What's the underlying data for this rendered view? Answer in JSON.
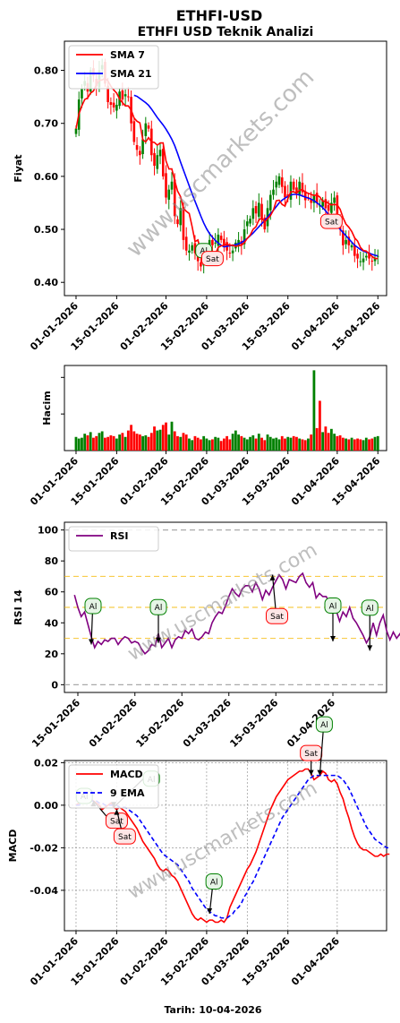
{
  "header": {
    "title": "ETHFI-USD",
    "subtitle": "ETHFI USD Teknik Analizi"
  },
  "watermark": "www.uscmarkets.com",
  "footer": {
    "date_label": "Tarih: 10-04-2026"
  },
  "colors": {
    "up": "#008000",
    "down": "#ff0000",
    "sma7": "#ff0000",
    "sma21": "#0000ff",
    "rsi": "#800080",
    "macd": "#ff0000",
    "signal": "#0000ff",
    "buy_border": "#008000",
    "sell_border": "#ff0000",
    "buy_fill": "#e6f5e6",
    "sell_fill": "#fde6e6"
  },
  "chart_data": [
    {
      "type": "candlestick",
      "ylabel": "Fiyat",
      "ylim": [
        0.375,
        0.855
      ],
      "yticks": [
        0.4,
        0.5,
        0.6,
        0.7,
        0.8
      ],
      "ytick_labels": [
        "0.40",
        "0.50",
        "0.60",
        "0.70",
        "0.80"
      ],
      "xlim": [
        -4,
        107
      ],
      "xticks": [
        0,
        14,
        31,
        45,
        59,
        73,
        90,
        104
      ],
      "xtick_labels": [
        "01-01-2026",
        "15-01-2026",
        "01-02-2026",
        "15-02-2026",
        "01-03-2026",
        "15-03-2026",
        "01-04-2026",
        "15-04-2026"
      ],
      "legend": [
        "SMA 7",
        "SMA 21"
      ],
      "legend_position": "upper left",
      "close": [
        0.69,
        0.745,
        0.765,
        0.78,
        0.76,
        0.8,
        0.79,
        0.77,
        0.8,
        0.81,
        0.775,
        0.74,
        0.735,
        0.73,
        0.735,
        0.76,
        0.745,
        0.755,
        0.75,
        0.7,
        0.665,
        0.65,
        0.64,
        0.67,
        0.7,
        0.69,
        0.64,
        0.62,
        0.64,
        0.65,
        0.6,
        0.56,
        0.575,
        0.59,
        0.525,
        0.51,
        0.54,
        0.48,
        0.46,
        0.46,
        0.47,
        0.455,
        0.44,
        0.43,
        0.45,
        0.46,
        0.48,
        0.47,
        0.475,
        0.49,
        0.48,
        0.47,
        0.46,
        0.455,
        0.46,
        0.475,
        0.48,
        0.47,
        0.5,
        0.515,
        0.52,
        0.54,
        0.53,
        0.55,
        0.52,
        0.5,
        0.54,
        0.565,
        0.575,
        0.59,
        0.6,
        0.58,
        0.56,
        0.56,
        0.59,
        0.575,
        0.57,
        0.59,
        0.57,
        0.555,
        0.56,
        0.55,
        0.565,
        0.55,
        0.545,
        0.555,
        0.54,
        0.535,
        0.55,
        0.56,
        0.52,
        0.5,
        0.47,
        0.48,
        0.47,
        0.47,
        0.45,
        0.445,
        0.44,
        0.445,
        0.45,
        0.445,
        0.44,
        0.445,
        0.45
      ],
      "sma7": [
        0.69,
        0.718,
        0.733,
        0.745,
        0.748,
        0.757,
        0.761,
        0.773,
        0.781,
        0.782,
        0.785,
        0.78,
        0.77,
        0.763,
        0.757,
        0.746,
        0.739,
        0.733,
        0.733,
        0.725,
        0.71,
        0.704,
        0.701,
        0.669,
        0.665,
        0.673,
        0.665,
        0.664,
        0.659,
        0.663,
        0.663,
        0.629,
        0.614,
        0.614,
        0.592,
        0.572,
        0.562,
        0.54,
        0.534,
        0.53,
        0.505,
        0.477,
        0.48,
        0.457,
        0.453,
        0.454,
        0.45,
        0.447,
        0.453,
        0.466,
        0.469,
        0.47,
        0.472,
        0.47,
        0.47,
        0.468,
        0.469,
        0.47,
        0.475,
        0.483,
        0.489,
        0.5,
        0.505,
        0.518,
        0.521,
        0.514,
        0.52,
        0.526,
        0.536,
        0.554,
        0.555,
        0.547,
        0.544,
        0.558,
        0.571,
        0.571,
        0.568,
        0.574,
        0.575,
        0.57,
        0.568,
        0.566,
        0.564,
        0.565,
        0.561,
        0.553,
        0.553,
        0.549,
        0.546,
        0.547,
        0.546,
        0.538,
        0.522,
        0.51,
        0.504,
        0.496,
        0.484,
        0.478,
        0.466,
        0.46,
        0.459,
        0.454,
        0.449,
        0.445,
        0.445
      ],
      "sma21": [
        null,
        null,
        null,
        null,
        null,
        null,
        null,
        null,
        null,
        null,
        null,
        null,
        null,
        null,
        null,
        null,
        null,
        null,
        null,
        null,
        0.753,
        0.751,
        0.747,
        0.743,
        0.739,
        0.734,
        0.727,
        0.719,
        0.711,
        0.704,
        0.697,
        0.689,
        0.68,
        0.67,
        0.658,
        0.643,
        0.627,
        0.612,
        0.597,
        0.582,
        0.567,
        0.553,
        0.539,
        0.525,
        0.512,
        0.501,
        0.492,
        0.485,
        0.479,
        0.474,
        0.47,
        0.467,
        0.468,
        0.469,
        0.47,
        0.471,
        0.473,
        0.475,
        0.479,
        0.483,
        0.488,
        0.493,
        0.499,
        0.505,
        0.511,
        0.517,
        0.523,
        0.53,
        0.536,
        0.543,
        0.55,
        0.555,
        0.559,
        0.562,
        0.565,
        0.566,
        0.566,
        0.565,
        0.563,
        0.561,
        0.559,
        0.557,
        0.554,
        0.55,
        0.546,
        0.541,
        0.535,
        0.528,
        0.521,
        0.514,
        0.507,
        0.5,
        0.494,
        0.488,
        0.482,
        0.476,
        0.47,
        0.466,
        0.462,
        0.459,
        0.457,
        0.455,
        0.453,
        0.451,
        0.45
      ],
      "signals": [
        {
          "label": "Al",
          "index": 44,
          "value": 0.46
        },
        {
          "label": "Sat",
          "index": 47,
          "value": 0.445
        },
        {
          "label": "Sat",
          "index": 88,
          "value": 0.515
        }
      ]
    },
    {
      "type": "bar",
      "ylabel": "Hacim",
      "xlim": [
        -4,
        107
      ],
      "xticks": [
        0,
        14,
        31,
        45,
        59,
        73,
        90,
        104
      ],
      "xtick_labels": [
        "01-01-2026",
        "15-01-2026",
        "01-02-2026",
        "15-02-2026",
        "01-03-2026",
        "15-03-2026",
        "01-04-2026",
        "15-04-2026"
      ],
      "values": [
        0.17,
        0.15,
        0.16,
        0.21,
        0.19,
        0.23,
        0.16,
        0.18,
        0.22,
        0.24,
        0.16,
        0.17,
        0.19,
        0.18,
        0.15,
        0.2,
        0.22,
        0.17,
        0.25,
        0.32,
        0.24,
        0.21,
        0.2,
        0.18,
        0.19,
        0.17,
        0.22,
        0.3,
        0.25,
        0.26,
        0.32,
        0.35,
        0.2,
        0.36,
        0.24,
        0.18,
        0.17,
        0.22,
        0.2,
        0.15,
        0.13,
        0.18,
        0.16,
        0.14,
        0.18,
        0.15,
        0.13,
        0.14,
        0.17,
        0.16,
        0.12,
        0.15,
        0.18,
        0.14,
        0.21,
        0.25,
        0.2,
        0.18,
        0.16,
        0.14,
        0.17,
        0.19,
        0.15,
        0.21,
        0.16,
        0.13,
        0.2,
        0.17,
        0.15,
        0.16,
        0.14,
        0.18,
        0.15,
        0.17,
        0.16,
        0.18,
        0.17,
        0.15,
        0.14,
        0.13,
        0.15,
        0.2,
        1.0,
        0.28,
        0.62,
        0.23,
        0.3,
        0.22,
        0.27,
        0.21,
        0.18,
        0.19,
        0.16,
        0.15,
        0.14,
        0.16,
        0.14,
        0.15,
        0.14,
        0.13,
        0.16,
        0.14,
        0.15,
        0.17,
        0.18
      ]
    },
    {
      "type": "line",
      "ylabel": "RSI 14",
      "ylim": [
        -5,
        105
      ],
      "yticks": [
        0,
        20,
        40,
        60,
        80,
        100
      ],
      "ytick_labels": [
        "0",
        "20",
        "40",
        "60",
        "80",
        "100"
      ],
      "xlim": [
        10,
        106
      ],
      "xticks": [
        14,
        31,
        45,
        59,
        73,
        90
      ],
      "xtick_labels": [
        "15-01-2026",
        "01-02-2026",
        "15-02-2026",
        "01-03-2026",
        "15-03-2026",
        "01-04-2026"
      ],
      "hlines": [
        0,
        30,
        50,
        70,
        100
      ],
      "legend": [
        "RSI"
      ],
      "legend_position": "upper left",
      "x_start": 13,
      "values": [
        58,
        50,
        44,
        47,
        39,
        31,
        24,
        28,
        26,
        29,
        28,
        30,
        30,
        26,
        29,
        31,
        30,
        27,
        28,
        27,
        23,
        20,
        22,
        26,
        25,
        33,
        24,
        27,
        30,
        24,
        29,
        31,
        30,
        35,
        33,
        36,
        30,
        29,
        31,
        34,
        33,
        40,
        44,
        47,
        46,
        51,
        57,
        62,
        59,
        57,
        62,
        64,
        64,
        60,
        66,
        62,
        55,
        61,
        58,
        63,
        67,
        71,
        68,
        62,
        68,
        67,
        66,
        70,
        72,
        66,
        63,
        66,
        56,
        59,
        57,
        57,
        53,
        47,
        48,
        41,
        47,
        44,
        50,
        43,
        40,
        36,
        32,
        27,
        31,
        40,
        32,
        40,
        45,
        35,
        29,
        34,
        30,
        33,
        25,
        24,
        31,
        41
      ],
      "signals": [
        {
          "label": "Al",
          "index": 18,
          "value": 26
        },
        {
          "label": "Al",
          "index": 38,
          "value": 27
        },
        {
          "label": "Sat",
          "index": 72,
          "value": 71
        },
        {
          "label": "Al",
          "index": 90,
          "value": 28
        },
        {
          "label": "Al",
          "index": 101,
          "value": 22
        }
      ]
    },
    {
      "type": "line",
      "ylabel": "MACD",
      "ylim": [
        -0.059,
        0.021
      ],
      "yticks": [
        -0.04,
        -0.02,
        0.0,
        0.02
      ],
      "ytick_labels": [
        "-0.04",
        "-0.02",
        "0.00",
        "0.02"
      ],
      "xlim": [
        -4,
        107
      ],
      "xticks": [
        0,
        14,
        31,
        45,
        59,
        73,
        90
      ],
      "xtick_labels": [
        "01-01-2026",
        "15-01-2026",
        "01-02-2026",
        "15-02-2026",
        "01-03-2026",
        "15-03-2026",
        "01-04-2026"
      ],
      "legend": [
        "MACD",
        "9 EMA"
      ],
      "legend_position": "upper left",
      "macd": [
        0.0,
        0.001,
        0.002,
        0.003,
        0.002,
        0.003,
        0.002,
        0.001,
        0.0,
        -0.002,
        -0.001,
        0.0,
        0.001,
        -0.001,
        -0.002,
        -0.001,
        -0.002,
        -0.003,
        -0.005,
        -0.007,
        -0.009,
        -0.011,
        -0.014,
        -0.017,
        -0.019,
        -0.021,
        -0.023,
        -0.025,
        -0.028,
        -0.03,
        -0.031,
        -0.03,
        -0.031,
        -0.033,
        -0.034,
        -0.036,
        -0.039,
        -0.042,
        -0.045,
        -0.048,
        -0.051,
        -0.053,
        -0.054,
        -0.053,
        -0.054,
        -0.055,
        -0.054,
        -0.054,
        -0.055,
        -0.055,
        -0.054,
        -0.055,
        -0.053,
        -0.048,
        -0.045,
        -0.042,
        -0.039,
        -0.036,
        -0.033,
        -0.03,
        -0.028,
        -0.025,
        -0.022,
        -0.018,
        -0.014,
        -0.01,
        -0.006,
        -0.002,
        0.001,
        0.004,
        0.006,
        0.008,
        0.01,
        0.012,
        0.013,
        0.014,
        0.015,
        0.016,
        0.016,
        0.017,
        0.017,
        0.015,
        0.012,
        0.013,
        0.014,
        0.016,
        0.015,
        0.012,
        0.011,
        0.012,
        0.01,
        0.006,
        0.003,
        -0.002,
        -0.006,
        -0.011,
        -0.015,
        -0.018,
        -0.02,
        -0.021,
        -0.021,
        -0.022,
        -0.023,
        -0.024,
        -0.024,
        -0.023,
        -0.024,
        -0.023,
        -0.023
      ],
      "signal": [
        0.0,
        0.0,
        0.001,
        0.001,
        0.001,
        0.002,
        0.002,
        0.002,
        0.001,
        0.001,
        0.0,
        0.0,
        0.0,
        0.0,
        0.0,
        -0.001,
        -0.001,
        -0.001,
        -0.002,
        -0.003,
        -0.004,
        -0.005,
        -0.007,
        -0.009,
        -0.011,
        -0.013,
        -0.015,
        -0.017,
        -0.019,
        -0.021,
        -0.023,
        -0.024,
        -0.025,
        -0.026,
        -0.027,
        -0.028,
        -0.03,
        -0.032,
        -0.034,
        -0.036,
        -0.039,
        -0.041,
        -0.043,
        -0.045,
        -0.047,
        -0.049,
        -0.05,
        -0.051,
        -0.052,
        -0.052,
        -0.053,
        -0.053,
        -0.053,
        -0.052,
        -0.051,
        -0.049,
        -0.048,
        -0.046,
        -0.043,
        -0.041,
        -0.038,
        -0.036,
        -0.033,
        -0.03,
        -0.027,
        -0.024,
        -0.021,
        -0.018,
        -0.015,
        -0.012,
        -0.009,
        -0.006,
        -0.004,
        -0.002,
        0.0,
        0.002,
        0.004,
        0.006,
        0.008,
        0.01,
        0.012,
        0.013,
        0.014,
        0.014,
        0.014,
        0.014,
        0.014,
        0.014,
        0.014,
        0.014,
        0.014,
        0.013,
        0.012,
        0.01,
        0.008,
        0.005,
        0.002,
        -0.001,
        -0.004,
        -0.007,
        -0.01,
        -0.012,
        -0.014,
        -0.016,
        -0.017,
        -0.018,
        -0.019,
        -0.02,
        -0.02
      ],
      "signals": [
        {
          "label": "Al",
          "index": 1,
          "value": 0.001
        },
        {
          "label": "Sat",
          "index": 6,
          "value": 0.002
        },
        {
          "label": "Al",
          "index": 13,
          "value": -0.001
        },
        {
          "label": "Sat",
          "index": 14,
          "value": -0.002
        },
        {
          "label": "Al",
          "index": 46,
          "value": -0.051
        },
        {
          "label": "Sat",
          "index": 81,
          "value": 0.014
        },
        {
          "label": "Al",
          "index": 84,
          "value": 0.014
        }
      ]
    }
  ]
}
